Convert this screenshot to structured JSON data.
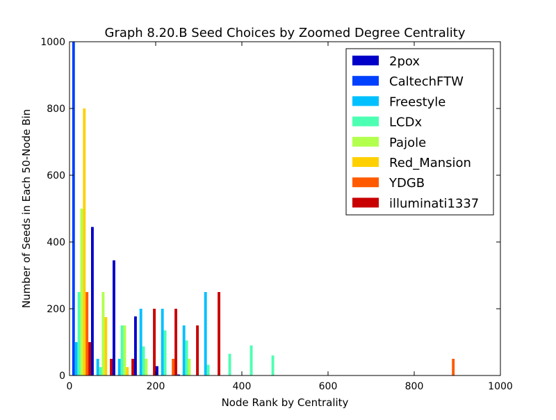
{
  "chart_data": {
    "type": "bar",
    "title": "Graph 8.20.B Seed Choices by Zoomed Degree Centrality",
    "xlabel": "Node Rank by Centrality",
    "ylabel": "Number of Seeds in Each 50-Node Bin",
    "xlim": [
      0,
      1000
    ],
    "ylim": [
      0,
      1000
    ],
    "xticks": [
      0,
      200,
      400,
      600,
      800,
      1000
    ],
    "yticks": [
      0,
      200,
      400,
      600,
      800,
      1000
    ],
    "bin_width": 50,
    "legend_position": "top-right",
    "series": [
      {
        "name": "2pox",
        "color": "#0000c8",
        "bins": [
          {
            "bin_start": 0,
            "value": 0
          },
          {
            "bin_start": 50,
            "value": 445
          },
          {
            "bin_start": 100,
            "value": 345
          },
          {
            "bin_start": 150,
            "value": 177
          },
          {
            "bin_start": 200,
            "value": 28
          },
          {
            "bin_start": 250,
            "value": 3
          }
        ]
      },
      {
        "name": "CaltechFTW",
        "color": "#0040ff",
        "bins": [
          {
            "bin_start": 0,
            "value": 1000
          }
        ]
      },
      {
        "name": "Freestyle",
        "color": "#00c0ff",
        "bins": [
          {
            "bin_start": 0,
            "value": 100
          },
          {
            "bin_start": 50,
            "value": 50
          },
          {
            "bin_start": 100,
            "value": 50
          },
          {
            "bin_start": 150,
            "value": 200
          },
          {
            "bin_start": 200,
            "value": 200
          },
          {
            "bin_start": 250,
            "value": 150
          },
          {
            "bin_start": 300,
            "value": 250
          }
        ]
      },
      {
        "name": "LCDx",
        "color": "#4dffb2",
        "bins": [
          {
            "bin_start": 0,
            "value": 250
          },
          {
            "bin_start": 50,
            "value": 25
          },
          {
            "bin_start": 100,
            "value": 150
          },
          {
            "bin_start": 150,
            "value": 87
          },
          {
            "bin_start": 200,
            "value": 135
          },
          {
            "bin_start": 250,
            "value": 105
          },
          {
            "bin_start": 300,
            "value": 32
          },
          {
            "bin_start": 350,
            "value": 65
          },
          {
            "bin_start": 400,
            "value": 90
          },
          {
            "bin_start": 450,
            "value": 60
          }
        ]
      },
      {
        "name": "Pajole",
        "color": "#b2ff4d",
        "bins": [
          {
            "bin_start": 0,
            "value": 500
          },
          {
            "bin_start": 50,
            "value": 250
          },
          {
            "bin_start": 100,
            "value": 150
          },
          {
            "bin_start": 150,
            "value": 50
          },
          {
            "bin_start": 250,
            "value": 50
          }
        ]
      },
      {
        "name": "Red_Mansion",
        "color": "#ffd000",
        "bins": [
          {
            "bin_start": 0,
            "value": 800
          },
          {
            "bin_start": 50,
            "value": 175
          },
          {
            "bin_start": 100,
            "value": 25
          }
        ]
      },
      {
        "name": "YDGB",
        "color": "#ff5a00",
        "bins": [
          {
            "bin_start": 0,
            "value": 250
          },
          {
            "bin_start": 200,
            "value": 50
          },
          {
            "bin_start": 850,
            "value": 50
          }
        ]
      },
      {
        "name": "illuminati1337",
        "color": "#c80000",
        "bins": [
          {
            "bin_start": 0,
            "value": 100
          },
          {
            "bin_start": 50,
            "value": 50
          },
          {
            "bin_start": 100,
            "value": 50
          },
          {
            "bin_start": 150,
            "value": 200
          },
          {
            "bin_start": 200,
            "value": 200
          },
          {
            "bin_start": 250,
            "value": 150
          },
          {
            "bin_start": 300,
            "value": 250
          }
        ]
      }
    ]
  }
}
